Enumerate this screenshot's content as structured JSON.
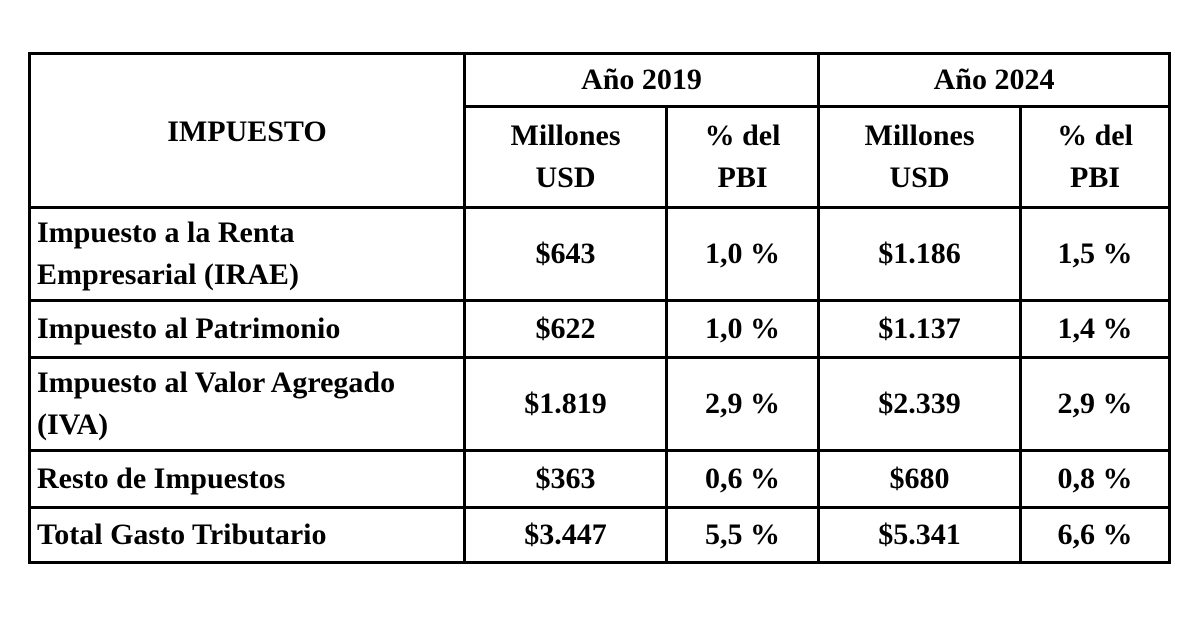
{
  "table": {
    "header": {
      "impuesto": "IMPUESTO",
      "years": [
        "Año 2019",
        "Año 2024"
      ],
      "sub_millones": [
        "Millones",
        "USD"
      ],
      "sub_pbi": [
        "% del",
        "PBI"
      ]
    },
    "rows": [
      {
        "name_lines": [
          "Impuesto a la Renta",
          "Empresarial (IRAE)"
        ],
        "y2019_usd": "$643",
        "y2019_pbi": "1,0 %",
        "y2024_usd": "$1.186",
        "y2024_pbi": "1,5 %"
      },
      {
        "name_lines": [
          "Impuesto al Patrimonio"
        ],
        "y2019_usd": "$622",
        "y2019_pbi": "1,0 %",
        "y2024_usd": "$1.137",
        "y2024_pbi": "1,4 %"
      },
      {
        "name_lines": [
          "Impuesto al Valor Agregado",
          "(IVA)"
        ],
        "y2019_usd": "$1.819",
        "y2019_pbi": "2,9 %",
        "y2024_usd": "$2.339",
        "y2024_pbi": "2,9 %"
      },
      {
        "name_lines": [
          "Resto de Impuestos"
        ],
        "y2019_usd": "$363",
        "y2019_pbi": "0,6 %",
        "y2024_usd": "$680",
        "y2024_pbi": "0,8 %"
      },
      {
        "name_lines": [
          "Total Gasto Tributario"
        ],
        "y2019_usd": "$3.447",
        "y2019_pbi": "5,5 %",
        "y2024_usd": "$5.341",
        "y2024_pbi": "6,6 %"
      }
    ]
  }
}
